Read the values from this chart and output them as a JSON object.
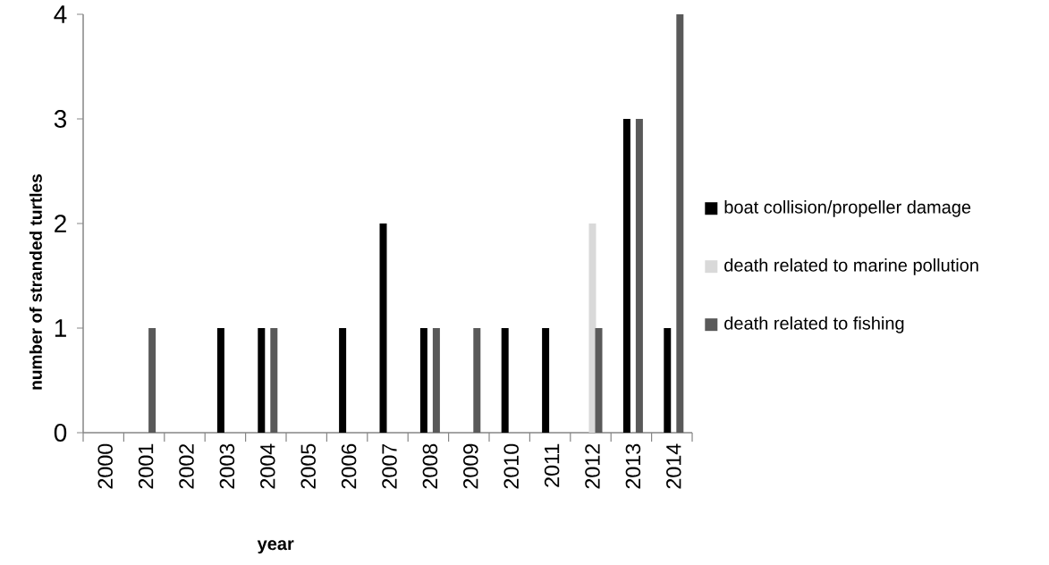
{
  "chart_data": {
    "type": "bar",
    "xlabel": "year",
    "ylabel": "number of stranded turtles",
    "categories": [
      "2000",
      "2001",
      "2002",
      "2003",
      "2004",
      "2005",
      "2006",
      "2007",
      "2008",
      "2009",
      "2010",
      "2011",
      "2012",
      "2013",
      "2014"
    ],
    "series": [
      {
        "name": "boat collision/propeller damage",
        "color": "#000000",
        "values": [
          0,
          0,
          0,
          1,
          1,
          0,
          1,
          2,
          1,
          0,
          1,
          1,
          0,
          3,
          1
        ]
      },
      {
        "name": "death related to marine pollution",
        "color": "#d9d9d9",
        "values": [
          0,
          0,
          0,
          0,
          0,
          0,
          0,
          0,
          0,
          0,
          0,
          0,
          2,
          0,
          0
        ]
      },
      {
        "name": "death related to fishing",
        "color": "#595959",
        "values": [
          0,
          1,
          0,
          0,
          1,
          0,
          0,
          0,
          1,
          1,
          0,
          0,
          1,
          3,
          4
        ]
      }
    ],
    "ylim": [
      0,
      4
    ],
    "yticks": [
      0,
      1,
      2,
      3,
      4
    ],
    "grid": false,
    "legend": "right"
  }
}
